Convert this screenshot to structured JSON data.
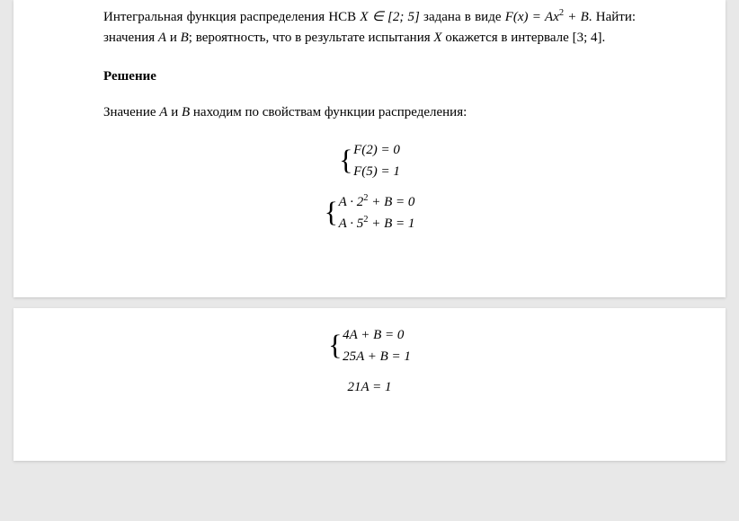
{
  "problem": {
    "line1_part1": "Интегральная функция распределения НСВ ",
    "line1_math1": "X ∈ [2; 5]",
    "line1_part2": " задана в виде ",
    "line1_math2": "F(x) =",
    "line2_math1": "Ax",
    "line2_sup": "2",
    "line2_math2": " + B",
    "line2_part1": ". Найти: значения ",
    "line2_mathA": "A",
    "line2_and": " и ",
    "line2_mathB": "B",
    "line2_part2": "; вероятность, что в результате испытания ",
    "line2_mathX": "X",
    "line3": "окажется в интервале [3; 4]."
  },
  "solution": {
    "header": "Решение",
    "intro_part1": "Значение ",
    "intro_A": "A",
    "intro_and": " и ",
    "intro_B": "B",
    "intro_part2": " находим по свойствам функции распределения:"
  },
  "systems": {
    "sys1": {
      "eq1": "F(2) = 0",
      "eq2": "F(5) = 1"
    },
    "sys2": {
      "eq1_a": "A · 2",
      "eq1_sup": "2",
      "eq1_b": " + B = 0",
      "eq2_a": "A · 5",
      "eq2_sup": "2",
      "eq2_b": " + B = 1"
    },
    "sys3": {
      "eq1": " 4A + B = 0",
      "eq2": "25A + B = 1"
    },
    "result": "21A = 1"
  },
  "style": {
    "background": "#e8e8e8",
    "page_bg": "#ffffff",
    "text_color": "#000000",
    "font_family": "Times New Roman",
    "base_fontsize": 15
  }
}
